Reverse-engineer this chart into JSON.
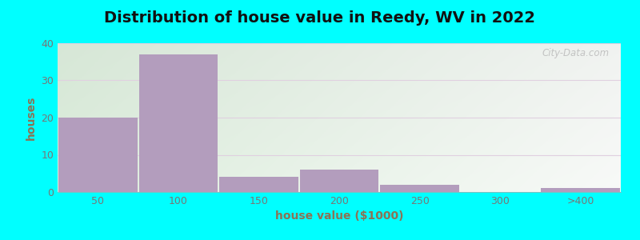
{
  "title": "Distribution of house value in Reedy, WV in 2022",
  "xlabel": "house value ($1000)",
  "ylabel": "houses",
  "background_outer": "#00FFFF",
  "bar_color": "#b39dbd",
  "bg_gradient_left": "#ddeedd",
  "bg_gradient_right": "#f8faf8",
  "categories": [
    "50",
    "100",
    "150",
    "200",
    "250",
    "300",
    ">400"
  ],
  "values": [
    20,
    37,
    4,
    6,
    2,
    0,
    1
  ],
  "ylim": [
    0,
    40
  ],
  "yticks": [
    0,
    10,
    20,
    30,
    40
  ],
  "watermark": "City-Data.com",
  "title_fontsize": 14,
  "label_fontsize": 10,
  "tick_fontsize": 9,
  "tick_color": "#777777",
  "label_color": "#8B7355",
  "grid_color": "#e8e8e8"
}
